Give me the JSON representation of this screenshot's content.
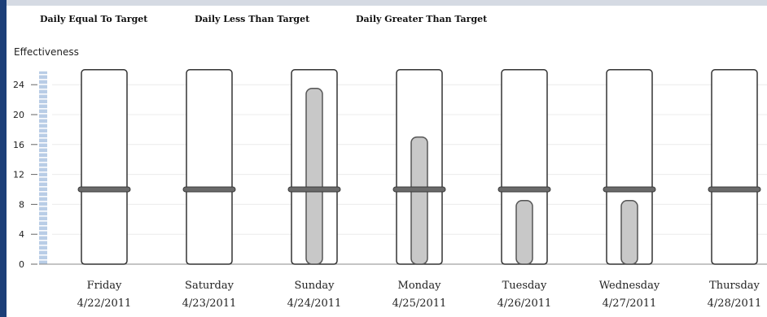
{
  "chart_data": {
    "type": "bar",
    "legend": [
      "Daily Equal To Target",
      "Daily Less Than Target",
      "Daily Greater Than Target"
    ],
    "ylabel": "Effectiveness",
    "ylim": [
      0,
      26
    ],
    "yticks": [
      0,
      4,
      8,
      12,
      16,
      20,
      24
    ],
    "categories": [
      {
        "day": "Friday",
        "date": "4/22/2011"
      },
      {
        "day": "Saturday",
        "date": "4/23/2011"
      },
      {
        "day": "Sunday",
        "date": "4/24/2011"
      },
      {
        "day": "Monday",
        "date": "4/25/2011"
      },
      {
        "day": "Tuesday",
        "date": "4/26/2011"
      },
      {
        "day": "Wednesday",
        "date": "4/27/2011"
      },
      {
        "day": "Thursday",
        "date": "4/28/2011"
      }
    ],
    "range_max": 26,
    "target": [
      10,
      10,
      10,
      10,
      10,
      10,
      10
    ],
    "values": [
      0,
      0,
      23.5,
      17,
      8.5,
      8.5,
      0
    ],
    "grid": true,
    "legend_position": "top",
    "colors": {
      "background": "#ffffff",
      "frame": "#1c3f78",
      "range_fill": "#ffffff",
      "range_border": "#333333",
      "bar_fill": "#c8c8c8",
      "bar_border": "#555555",
      "target": "#6a6a6a",
      "axis_strip": "#b9cde6",
      "gridline": "#ececec"
    }
  }
}
